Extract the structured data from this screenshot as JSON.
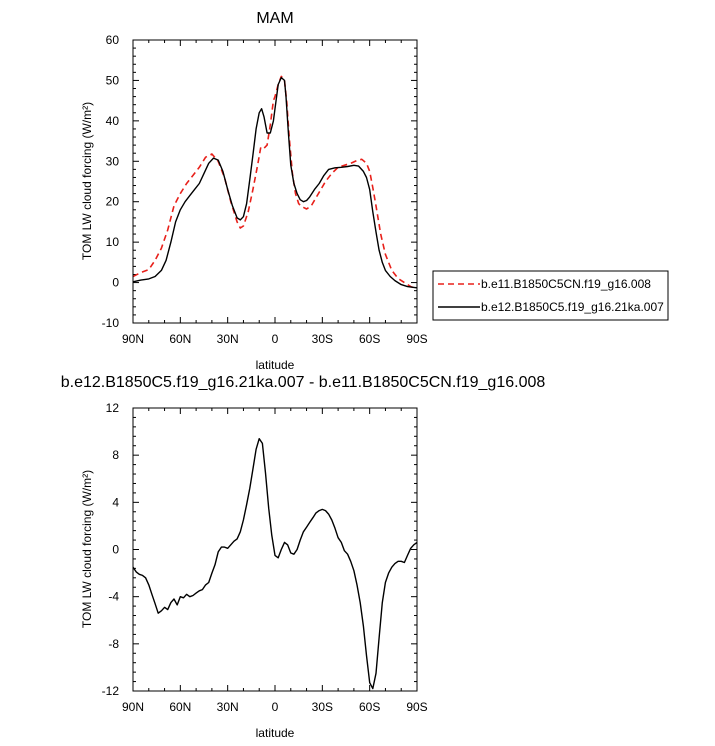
{
  "chart_data": [
    {
      "type": "line",
      "title": "MAM",
      "xlabel": "latitude",
      "ylabel": "TOM LW cloud forcing (W/m²)",
      "xlim": [
        90,
        -90
      ],
      "ylim": [
        -10,
        60
      ],
      "xticks": [
        90,
        60,
        30,
        0,
        -30,
        -60,
        -90
      ],
      "xtick_labels": [
        "90N",
        "60N",
        "30N",
        "0",
        "30S",
        "60S",
        "90S"
      ],
      "yticks": [
        -10,
        0,
        10,
        20,
        30,
        40,
        50,
        60
      ],
      "ytick_labels": [
        "-10",
        "0",
        "10",
        "20",
        "30",
        "40",
        "50",
        "60"
      ],
      "legend_position": "right",
      "series": [
        {
          "name": "b.e11.B1850C5CN.f19_g16.008",
          "color": "#e8201a",
          "dash": "dashed",
          "x": [
            90,
            85,
            80,
            76,
            72,
            68,
            64,
            60,
            56,
            52,
            48,
            44,
            40,
            36,
            32,
            28,
            24,
            22,
            20,
            17,
            14,
            11,
            9,
            7,
            5,
            3,
            1,
            0,
            -2,
            -4,
            -6,
            -7.5,
            -9,
            -11,
            -13,
            -15,
            -17,
            -20,
            -23,
            -26,
            -29,
            -32,
            -36,
            -40,
            -44,
            -48,
            -52,
            -55,
            -58,
            -60,
            -62,
            -64,
            -67,
            -70,
            -74,
            -78,
            -82,
            -86,
            -90
          ],
          "y": [
            1.5,
            2.5,
            3.2,
            5.5,
            8.5,
            13,
            19,
            22,
            24.5,
            26.5,
            28.5,
            31,
            31.8,
            30,
            26,
            20,
            15,
            13.5,
            14,
            17.5,
            23,
            29,
            33.5,
            33.2,
            34,
            39,
            45,
            46,
            49,
            51,
            50,
            44.5,
            36,
            27,
            22,
            19.5,
            18.8,
            18.2,
            19,
            21,
            23,
            25,
            27,
            28.5,
            29,
            29.5,
            30.2,
            30.5,
            29.5,
            27.5,
            23.5,
            19,
            12,
            7,
            3,
            1,
            0,
            -1,
            -1.5
          ]
        },
        {
          "name": "b.e12.B1850C5.f19_g16.21ka.007",
          "color": "#000000",
          "dash": "solid",
          "x": [
            90,
            85,
            80,
            76,
            72,
            69,
            66,
            63,
            60,
            57,
            54,
            51,
            48,
            45,
            42,
            39,
            36,
            33,
            30,
            27,
            24,
            22,
            20,
            18,
            16,
            14,
            12,
            10,
            8.5,
            7,
            5,
            3,
            1,
            0,
            -2,
            -4,
            -6,
            -7,
            -8.5,
            -10,
            -12,
            -14,
            -16,
            -18,
            -20,
            -22,
            -25,
            -28,
            -31,
            -34,
            -38,
            -42,
            -46,
            -50,
            -53,
            -56,
            -58,
            -60,
            -62,
            -64,
            -66,
            -68,
            -70,
            -73,
            -76,
            -80,
            -84,
            -88,
            -90
          ],
          "y": [
            0.2,
            0.6,
            0.9,
            1.5,
            3,
            5.5,
            10,
            15,
            18,
            20,
            21.5,
            23,
            24.5,
            27,
            29.5,
            30.8,
            30.3,
            27.5,
            23,
            19,
            16,
            15.5,
            16.3,
            19.5,
            25.5,
            31.5,
            38,
            42,
            43,
            41,
            37,
            37,
            40,
            43,
            49,
            50.7,
            50,
            46,
            37,
            29,
            24.5,
            22,
            20.5,
            20,
            20.3,
            21.2,
            23,
            24.5,
            26.5,
            28,
            28.4,
            28.5,
            28.7,
            29,
            28.8,
            27.5,
            26,
            23,
            17.5,
            12.5,
            8,
            5,
            3,
            1.5,
            0.5,
            -0.5,
            -1,
            -1.2,
            -1.3
          ]
        }
      ]
    },
    {
      "type": "line",
      "title": "b.e12.B1850C5.f19_g16.21ka.007 - b.e11.B1850C5CN.f19_g16.008",
      "xlabel": "latitude",
      "ylabel": "TOM LW cloud forcing (W/m²)",
      "xlim": [
        90,
        -90
      ],
      "ylim": [
        -12,
        12
      ],
      "xticks": [
        90,
        60,
        30,
        0,
        -30,
        -60,
        -90
      ],
      "xtick_labels": [
        "90N",
        "60N",
        "30N",
        "0",
        "30S",
        "60S",
        "90S"
      ],
      "yticks": [
        -12,
        -8,
        -4,
        0,
        4,
        8,
        12
      ],
      "ytick_labels": [
        "-12",
        "-8",
        "-4",
        "0",
        "4",
        "8",
        "12"
      ],
      "series": [
        {
          "color": "#000000",
          "dash": "solid",
          "x": [
            90,
            88,
            86,
            84,
            82,
            80,
            78,
            76,
            74,
            72,
            70,
            68,
            66,
            64,
            62,
            60,
            58,
            56,
            54,
            52,
            50,
            48,
            46,
            44,
            42,
            40,
            38,
            36,
            34,
            32,
            30,
            28,
            26,
            24,
            22,
            20,
            18,
            16,
            14,
            12,
            10,
            8,
            6,
            4,
            2,
            0,
            -2,
            -4,
            -6,
            -8,
            -10,
            -12,
            -14,
            -16,
            -18,
            -20,
            -22,
            -24,
            -26,
            -28,
            -30,
            -32,
            -34,
            -36,
            -38,
            -40,
            -42,
            -44,
            -46,
            -48,
            -50,
            -52,
            -54,
            -56,
            -58,
            -60,
            -62,
            -64,
            -66,
            -68,
            -70,
            -72,
            -74,
            -76,
            -78,
            -80,
            -82,
            -84,
            -86,
            -88,
            -90
          ],
          "y": [
            -1.5,
            -1.9,
            -2.1,
            -2.2,
            -2.4,
            -3,
            -3.8,
            -4.6,
            -5.4,
            -5.2,
            -4.9,
            -5.1,
            -4.5,
            -4.2,
            -4.7,
            -4,
            -4.1,
            -3.8,
            -4,
            -3.9,
            -3.7,
            -3.5,
            -3.4,
            -3,
            -2.8,
            -2,
            -1.3,
            -0.2,
            0.2,
            0.2,
            0.1,
            0.4,
            0.7,
            0.9,
            1.5,
            2.5,
            3.8,
            5.2,
            6.8,
            8.5,
            9.4,
            9,
            6.5,
            3.5,
            1.2,
            -0.5,
            -0.7,
            0,
            0.6,
            0.4,
            -0.3,
            -0.4,
            0,
            0.8,
            1.5,
            1.9,
            2.3,
            2.7,
            3.1,
            3.3,
            3.4,
            3.3,
            3,
            2.5,
            1.8,
            1,
            0.6,
            -0.1,
            -0.4,
            -1,
            -1.8,
            -3,
            -4.5,
            -6.5,
            -9,
            -11.3,
            -11.8,
            -10.5,
            -7.5,
            -4.5,
            -2.8,
            -2,
            -1.5,
            -1.2,
            -1,
            -1,
            -1.1,
            -0.5,
            0.1,
            0.4,
            0.6
          ]
        }
      ]
    }
  ],
  "legend": {
    "entries": [
      {
        "label": "b.e11.B1850C5CN.f19_g16.008",
        "color": "#e8201a",
        "dash": "dashed"
      },
      {
        "label": "b.e12.B1850C5.f19_g16.21ka.007",
        "color": "#000000",
        "dash": "solid"
      }
    ]
  }
}
